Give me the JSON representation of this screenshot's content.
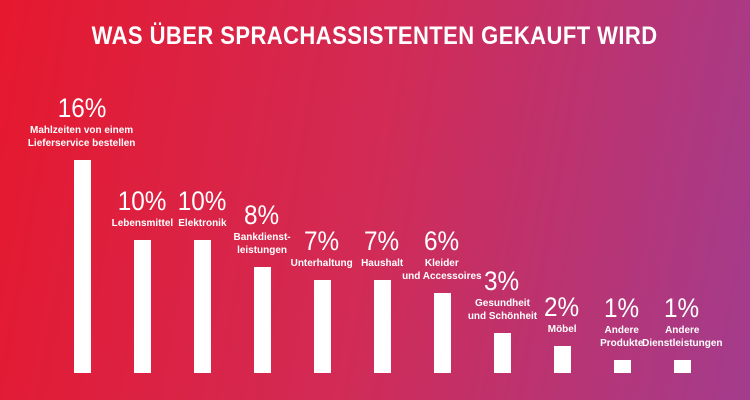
{
  "page_title": "WAS ÜBER SPRACHASSISTENTEN GEKAUFT WIRD",
  "chart_data": {
    "type": "bar",
    "title": "WAS ÜBER SPRACHASSISTENTEN GEKAUFT WIRD",
    "unit": "percent",
    "xlabel": "",
    "ylabel": "",
    "grid": false,
    "legend": false,
    "orientation": "vertical",
    "categories": [
      "Mahlzeiten von einem Lieferservice bestellen",
      "Lebensmittel",
      "Elektronik",
      "Bankdienstleistungen",
      "Unterhaltung",
      "Haushalt",
      "Kleider und Accessoires",
      "Gesundheit und Schönheit",
      "Möbel",
      "Andere Produkte",
      "Andere Dienstleistungen"
    ],
    "values": [
      16,
      10,
      10,
      8,
      7,
      7,
      6,
      3,
      2,
      1,
      1
    ],
    "bars": [
      {
        "value": 16,
        "value_label": "16%",
        "category_lines": [
          "Mahlzeiten von einem",
          "Lieferservice bestellen"
        ]
      },
      {
        "value": 10,
        "value_label": "10%",
        "category_lines": [
          "Lebensmittel"
        ]
      },
      {
        "value": 10,
        "value_label": "10%",
        "category_lines": [
          "Elektronik"
        ]
      },
      {
        "value": 8,
        "value_label": "8%",
        "category_lines": [
          "Bankdienst-",
          "leistungen"
        ]
      },
      {
        "value": 7,
        "value_label": "7%",
        "category_lines": [
          "Unterhaltung"
        ]
      },
      {
        "value": 7,
        "value_label": "7%",
        "category_lines": [
          "Haushalt"
        ]
      },
      {
        "value": 6,
        "value_label": "6%",
        "category_lines": [
          "Kleider",
          "und Accessoires"
        ]
      },
      {
        "value": 3,
        "value_label": "3%",
        "category_lines": [
          "Gesundheit",
          "und Schönheit"
        ]
      },
      {
        "value": 2,
        "value_label": "2%",
        "category_lines": [
          "Möbel"
        ]
      },
      {
        "value": 1,
        "value_label": "1%",
        "category_lines": [
          "Andere",
          "Produkte"
        ]
      },
      {
        "value": 1,
        "value_label": "1%",
        "category_lines": [
          "Andere",
          "Dienstleistungen"
        ]
      }
    ],
    "colors": {
      "background_gradient_start": "#e6182e",
      "background_gradient_mid": "#d12b56",
      "background_gradient_end": "#a33c8d",
      "bar_fill": "#ffffff",
      "text": "#ffffff"
    }
  }
}
